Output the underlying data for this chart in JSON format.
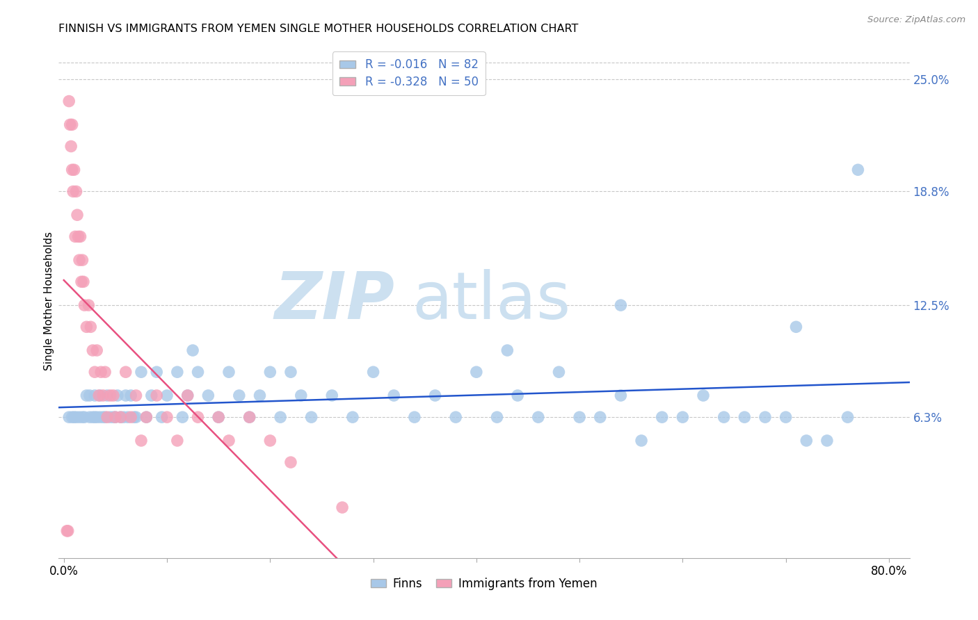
{
  "title": "FINNISH VS IMMIGRANTS FROM YEMEN SINGLE MOTHER HOUSEHOLDS CORRELATION CHART",
  "source": "Source: ZipAtlas.com",
  "ylabel": "Single Mother Households",
  "xlim": [
    -0.005,
    0.82
  ],
  "ylim": [
    -0.015,
    0.27
  ],
  "xticks": [
    0.0,
    0.1,
    0.2,
    0.3,
    0.4,
    0.5,
    0.6,
    0.7,
    0.8
  ],
  "xticklabels": [
    "0.0%",
    "",
    "",
    "",
    "",
    "",
    "",
    "",
    "80.0%"
  ],
  "ytick_values": [
    0.063,
    0.125,
    0.188,
    0.25
  ],
  "ytick_labels": [
    "6.3%",
    "12.5%",
    "18.8%",
    "25.0%"
  ],
  "finns_color": "#a8c8e8",
  "yemen_color": "#f4a0b8",
  "finns_line_color": "#2255cc",
  "yemen_line_color": "#e85080",
  "watermark_color": "#cce0f0",
  "legend_r_color": "#4472c4",
  "legend_n_color": "#4472c4",
  "finns_R": -0.016,
  "yemen_R": -0.328,
  "finns_x": [
    0.005,
    0.008,
    0.01,
    0.012,
    0.015,
    0.018,
    0.02,
    0.022,
    0.025,
    0.025,
    0.028,
    0.03,
    0.03,
    0.032,
    0.035,
    0.035,
    0.038,
    0.04,
    0.042,
    0.045,
    0.048,
    0.05,
    0.052,
    0.055,
    0.058,
    0.06,
    0.062,
    0.065,
    0.068,
    0.07,
    0.075,
    0.08,
    0.085,
    0.09,
    0.095,
    0.1,
    0.11,
    0.115,
    0.12,
    0.125,
    0.13,
    0.14,
    0.15,
    0.16,
    0.17,
    0.18,
    0.19,
    0.2,
    0.21,
    0.22,
    0.23,
    0.24,
    0.26,
    0.28,
    0.3,
    0.32,
    0.34,
    0.36,
    0.38,
    0.4,
    0.42,
    0.44,
    0.46,
    0.48,
    0.5,
    0.52,
    0.54,
    0.56,
    0.58,
    0.6,
    0.62,
    0.64,
    0.66,
    0.68,
    0.7,
    0.72,
    0.74,
    0.76,
    0.71,
    0.54,
    0.43,
    0.77
  ],
  "finns_y": [
    0.063,
    0.063,
    0.063,
    0.063,
    0.063,
    0.063,
    0.063,
    0.075,
    0.063,
    0.075,
    0.063,
    0.063,
    0.075,
    0.063,
    0.063,
    0.075,
    0.063,
    0.063,
    0.075,
    0.063,
    0.063,
    0.063,
    0.075,
    0.063,
    0.063,
    0.075,
    0.063,
    0.075,
    0.063,
    0.063,
    0.088,
    0.063,
    0.075,
    0.088,
    0.063,
    0.075,
    0.088,
    0.063,
    0.075,
    0.1,
    0.088,
    0.075,
    0.063,
    0.088,
    0.075,
    0.063,
    0.075,
    0.088,
    0.063,
    0.088,
    0.075,
    0.063,
    0.075,
    0.063,
    0.088,
    0.075,
    0.063,
    0.075,
    0.063,
    0.088,
    0.063,
    0.075,
    0.063,
    0.088,
    0.063,
    0.063,
    0.075,
    0.05,
    0.063,
    0.063,
    0.075,
    0.063,
    0.063,
    0.063,
    0.063,
    0.05,
    0.05,
    0.063,
    0.113,
    0.125,
    0.1,
    0.2
  ],
  "yemen_x": [
    0.003,
    0.004,
    0.005,
    0.006,
    0.007,
    0.008,
    0.008,
    0.009,
    0.01,
    0.011,
    0.012,
    0.013,
    0.014,
    0.015,
    0.016,
    0.017,
    0.018,
    0.019,
    0.02,
    0.022,
    0.024,
    0.026,
    0.028,
    0.03,
    0.032,
    0.034,
    0.036,
    0.038,
    0.04,
    0.042,
    0.045,
    0.048,
    0.05,
    0.055,
    0.06,
    0.065,
    0.07,
    0.075,
    0.08,
    0.09,
    0.1,
    0.11,
    0.12,
    0.13,
    0.15,
    0.16,
    0.18,
    0.2,
    0.22,
    0.27
  ],
  "yemen_y": [
    0.0,
    0.0,
    0.238,
    0.225,
    0.213,
    0.2,
    0.225,
    0.188,
    0.2,
    0.163,
    0.188,
    0.175,
    0.163,
    0.15,
    0.163,
    0.138,
    0.15,
    0.138,
    0.125,
    0.113,
    0.125,
    0.113,
    0.1,
    0.088,
    0.1,
    0.075,
    0.088,
    0.075,
    0.088,
    0.063,
    0.075,
    0.075,
    0.063,
    0.063,
    0.088,
    0.063,
    0.075,
    0.05,
    0.063,
    0.075,
    0.063,
    0.05,
    0.075,
    0.063,
    0.063,
    0.05,
    0.063,
    0.05,
    0.038,
    0.013
  ]
}
